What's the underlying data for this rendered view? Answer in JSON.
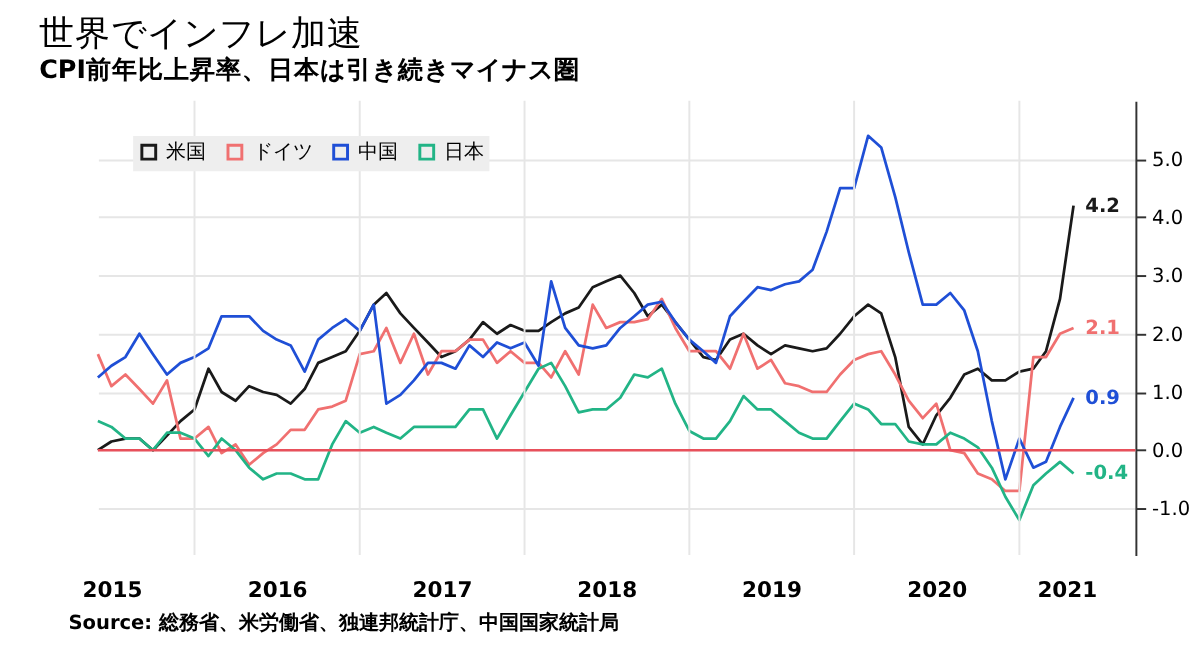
{
  "chart_data": {
    "type": "line",
    "title": "世界でインフレ加速",
    "subtitle": "CPI前年比上昇率、日本は引き続きマイナス圏",
    "x": [
      "2015-06",
      "2015-07",
      "2015-08",
      "2015-09",
      "2015-10",
      "2015-11",
      "2015-12",
      "2016-01",
      "2016-02",
      "2016-03",
      "2016-04",
      "2016-05",
      "2016-06",
      "2016-07",
      "2016-08",
      "2016-09",
      "2016-10",
      "2016-11",
      "2016-12",
      "2017-01",
      "2017-02",
      "2017-03",
      "2017-04",
      "2017-05",
      "2017-06",
      "2017-07",
      "2017-08",
      "2017-09",
      "2017-10",
      "2017-11",
      "2017-12",
      "2018-01",
      "2018-02",
      "2018-03",
      "2018-04",
      "2018-05",
      "2018-06",
      "2018-07",
      "2018-08",
      "2018-09",
      "2018-10",
      "2018-11",
      "2018-12",
      "2019-01",
      "2019-02",
      "2019-03",
      "2019-04",
      "2019-05",
      "2019-06",
      "2019-07",
      "2019-08",
      "2019-09",
      "2019-10",
      "2019-11",
      "2019-12",
      "2020-01",
      "2020-02",
      "2020-03",
      "2020-04",
      "2020-05",
      "2020-06",
      "2020-07",
      "2020-08",
      "2020-09",
      "2020-10",
      "2020-11",
      "2020-12",
      "2021-01",
      "2021-02",
      "2021-03",
      "2021-04",
      "2021-05"
    ],
    "series": [
      {
        "name": "米国",
        "color": "#1a1a1a",
        "values": [
          0.0,
          0.15,
          0.2,
          0.2,
          0.0,
          0.25,
          0.5,
          0.7,
          1.4,
          1.0,
          0.85,
          1.1,
          1.0,
          0.95,
          0.8,
          1.05,
          1.5,
          1.6,
          1.7,
          2.05,
          2.5,
          2.7,
          2.35,
          2.1,
          1.85,
          1.6,
          1.7,
          1.9,
          2.2,
          2.0,
          2.15,
          2.05,
          2.05,
          2.2,
          2.35,
          2.45,
          2.8,
          2.9,
          3.0,
          2.7,
          2.3,
          2.5,
          2.2,
          1.9,
          1.6,
          1.55,
          1.9,
          2.0,
          1.8,
          1.65,
          1.8,
          1.75,
          1.7,
          1.75,
          2.0,
          2.3,
          2.5,
          2.35,
          1.6,
          0.4,
          0.1,
          0.6,
          0.9,
          1.3,
          1.4,
          1.2,
          1.2,
          1.35,
          1.4,
          1.7,
          2.6,
          4.2
        ],
        "value_labels": [
          null,
          null,
          null,
          null,
          null,
          null,
          null,
          null,
          null,
          null,
          null,
          null,
          null,
          null,
          null,
          null,
          null,
          null,
          null,
          null,
          null,
          null,
          null,
          null,
          null,
          null,
          null,
          null,
          null,
          null,
          null,
          null,
          null,
          null,
          null,
          null,
          null,
          null,
          null,
          null,
          null,
          null,
          null,
          null,
          null,
          null,
          null,
          null,
          null,
          null,
          null,
          null,
          null,
          null,
          null,
          null,
          null,
          null,
          null,
          null,
          null,
          null,
          null,
          null,
          null,
          null,
          null,
          null,
          null,
          null,
          null,
          "4.2"
        ]
      },
      {
        "name": "ドイツ",
        "color": "#f07070",
        "values": [
          1.65,
          1.1,
          1.3,
          1.05,
          0.8,
          1.2,
          0.2,
          0.2,
          0.4,
          -0.05,
          0.1,
          -0.25,
          -0.05,
          0.1,
          0.35,
          0.35,
          0.7,
          0.75,
          0.85,
          1.65,
          1.7,
          2.1,
          1.5,
          2.0,
          1.3,
          1.7,
          1.7,
          1.9,
          1.9,
          1.5,
          1.7,
          1.5,
          1.5,
          1.25,
          1.7,
          1.3,
          2.5,
          2.1,
          2.2,
          2.2,
          2.25,
          2.6,
          2.1,
          1.7,
          1.7,
          1.7,
          1.4,
          2.0,
          1.4,
          1.55,
          1.15,
          1.1,
          1.0,
          1.0,
          1.3,
          1.55,
          1.65,
          1.7,
          1.3,
          0.85,
          0.55,
          0.8,
          0.0,
          -0.05,
          -0.4,
          -0.5,
          -0.7,
          -0.7,
          1.6,
          1.6,
          2.0,
          2.1
        ],
        "value_labels": [
          null,
          null,
          null,
          null,
          null,
          null,
          null,
          null,
          null,
          null,
          null,
          null,
          null,
          null,
          null,
          null,
          null,
          null,
          null,
          null,
          null,
          null,
          null,
          null,
          null,
          null,
          null,
          null,
          null,
          null,
          null,
          null,
          null,
          null,
          null,
          null,
          null,
          null,
          null,
          null,
          null,
          null,
          null,
          null,
          null,
          null,
          null,
          null,
          null,
          null,
          null,
          null,
          null,
          null,
          null,
          null,
          null,
          null,
          null,
          null,
          null,
          null,
          null,
          null,
          null,
          null,
          null,
          null,
          null,
          null,
          null,
          "2.1"
        ]
      },
      {
        "name": "中国",
        "color": "#1f4fd6",
        "values": [
          1.25,
          1.45,
          1.6,
          2.0,
          1.65,
          1.3,
          1.5,
          1.6,
          1.75,
          2.3,
          2.3,
          2.3,
          2.05,
          1.9,
          1.8,
          1.35,
          1.9,
          2.1,
          2.25,
          2.05,
          2.5,
          0.8,
          0.95,
          1.2,
          1.5,
          1.5,
          1.4,
          1.8,
          1.6,
          1.85,
          1.75,
          1.85,
          1.45,
          2.9,
          2.1,
          1.8,
          1.75,
          1.8,
          2.1,
          2.3,
          2.5,
          2.55,
          2.2,
          1.9,
          1.7,
          1.5,
          2.3,
          2.55,
          2.8,
          2.75,
          2.85,
          2.9,
          3.1,
          3.75,
          4.5,
          4.5,
          5.4,
          5.2,
          4.35,
          3.4,
          2.5,
          2.5,
          2.7,
          2.4,
          1.7,
          0.5,
          -0.5,
          0.2,
          -0.3,
          -0.2,
          0.4,
          0.9
        ],
        "value_labels": [
          null,
          null,
          null,
          null,
          null,
          null,
          null,
          null,
          null,
          null,
          null,
          null,
          null,
          null,
          null,
          null,
          null,
          null,
          null,
          null,
          null,
          null,
          null,
          null,
          null,
          null,
          null,
          null,
          null,
          null,
          null,
          null,
          null,
          null,
          null,
          null,
          null,
          null,
          null,
          null,
          null,
          null,
          null,
          null,
          null,
          null,
          null,
          null,
          null,
          null,
          null,
          null,
          null,
          null,
          null,
          null,
          null,
          null,
          null,
          null,
          null,
          null,
          null,
          null,
          null,
          null,
          null,
          null,
          null,
          null,
          null,
          "0.9"
        ]
      },
      {
        "name": "日本",
        "color": "#22b486",
        "values": [
          0.5,
          0.4,
          0.2,
          0.2,
          0.0,
          0.3,
          0.3,
          0.2,
          -0.1,
          0.2,
          0.0,
          -0.3,
          -0.5,
          -0.4,
          -0.4,
          -0.5,
          -0.5,
          0.1,
          0.5,
          0.3,
          0.4,
          0.3,
          0.2,
          0.4,
          0.4,
          0.4,
          0.4,
          0.7,
          0.7,
          0.2,
          0.6,
          1.0,
          1.4,
          1.5,
          1.1,
          0.65,
          0.7,
          0.7,
          0.9,
          1.3,
          1.25,
          1.4,
          0.8,
          0.33,
          0.2,
          0.2,
          0.5,
          0.93,
          0.7,
          0.7,
          0.5,
          0.3,
          0.2,
          0.2,
          0.5,
          0.8,
          0.7,
          0.45,
          0.45,
          0.15,
          0.1,
          0.1,
          0.3,
          0.2,
          0.05,
          -0.3,
          -0.8,
          -1.2,
          -0.6,
          -0.4,
          -0.2,
          -0.4
        ],
        "value_labels": [
          null,
          null,
          null,
          null,
          null,
          null,
          null,
          null,
          null,
          null,
          null,
          null,
          null,
          null,
          null,
          null,
          null,
          null,
          null,
          null,
          null,
          null,
          null,
          null,
          null,
          null,
          null,
          null,
          null,
          null,
          null,
          null,
          null,
          null,
          null,
          null,
          null,
          null,
          null,
          null,
          null,
          null,
          null,
          null,
          null,
          null,
          null,
          null,
          null,
          null,
          null,
          null,
          null,
          null,
          null,
          null,
          null,
          null,
          null,
          null,
          null,
          null,
          null,
          null,
          null,
          null,
          null,
          null,
          null,
          null,
          null,
          "-0.4"
        ]
      }
    ],
    "xlim": [
      "2015-06-01",
      "2021-09-15"
    ],
    "xticks": [
      {
        "value": "2015-07-01",
        "label": "2015"
      },
      {
        "value": "2016-01-01",
        "label": null
      },
      {
        "value": "2016-07-01",
        "label": "2016"
      },
      {
        "value": "2017-01-01",
        "label": null
      },
      {
        "value": "2017-07-01",
        "label": "2017"
      },
      {
        "value": "2018-01-01",
        "label": null
      },
      {
        "value": "2018-07-01",
        "label": "2018"
      },
      {
        "value": "2019-01-01",
        "label": null
      },
      {
        "value": "2019-07-01",
        "label": "2019"
      },
      {
        "value": "2020-01-01",
        "label": null
      },
      {
        "value": "2020-07-01",
        "label": "2020"
      },
      {
        "value": "2021-01-01",
        "label": null
      },
      {
        "value": "2021-04-15",
        "label": "2021"
      }
    ],
    "ylim": [
      -1.8,
      6.0
    ],
    "yticks": [
      {
        "value": -1,
        "label": "-1.0"
      },
      {
        "value": 0,
        "label": "0.0"
      },
      {
        "value": 1,
        "label": "1.0"
      },
      {
        "value": 2,
        "label": "2.0"
      },
      {
        "value": 3,
        "label": "3.0"
      },
      {
        "value": 4,
        "label": "4.0"
      },
      {
        "value": 5,
        "label": "5.0"
      }
    ],
    "ref_lines": [
      {
        "axis": "y",
        "value": 0,
        "color": "#e8505b"
      }
    ],
    "grid": true,
    "legend": "top left",
    "line_style": "solid",
    "marker": "none",
    "annotations": [
      "Source: 総務省、米労働省、独連邦統計庁、中国国家統計局"
    ]
  }
}
